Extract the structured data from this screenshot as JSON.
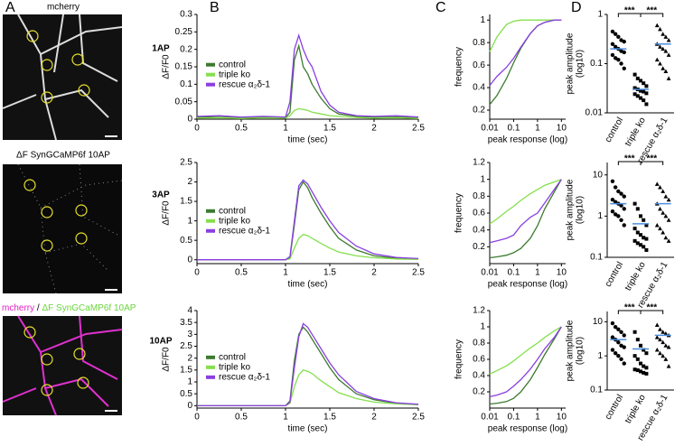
{
  "panel_labels": [
    "A",
    "B",
    "C",
    "D"
  ],
  "images": [
    {
      "label_parts": [
        "mcherry"
      ]
    },
    {
      "label_parts": [
        "ΔF SynGCaMP6f 10AP"
      ]
    },
    {
      "label_parts": [
        "mcherry",
        "/",
        "ΔF SynGCaMP6f 10AP"
      ]
    }
  ],
  "chart_data": [
    {
      "type": "line",
      "title": "1AP",
      "xlabel": "time (sec)",
      "ylabel": "ΔF/F0",
      "x": [
        0,
        0.25,
        0.5,
        0.75,
        1.0,
        1.05,
        1.1,
        1.15,
        1.2,
        1.25,
        1.3,
        1.4,
        1.5,
        1.6,
        1.8,
        2.0,
        2.25,
        2.5
      ],
      "xlim": [
        0,
        2.5
      ],
      "xticks": [
        0,
        0.5,
        1,
        1.5,
        2,
        2.5
      ],
      "ylim": [
        0,
        0.3
      ],
      "yticks": [
        0,
        0.05,
        0.1,
        0.15,
        0.2,
        0.25,
        0.3
      ],
      "series": [
        {
          "name": "control",
          "color": "#3c7a2e",
          "values": [
            0.005,
            0.008,
            0.005,
            0.006,
            0.004,
            0.02,
            0.17,
            0.21,
            0.15,
            0.13,
            0.1,
            0.06,
            0.03,
            0.015,
            0.008,
            0.005,
            0.006,
            0.004
          ]
        },
        {
          "name": "triple ko",
          "color": "#84e04c",
          "values": [
            0.003,
            0.004,
            0.002,
            0.004,
            0.003,
            0.01,
            0.025,
            0.03,
            0.028,
            0.025,
            0.02,
            0.015,
            0.01,
            0.008,
            0.005,
            0.003,
            0.004,
            0.002
          ]
        },
        {
          "name": "rescue α₂δ-1",
          "color": "#8a3fe0",
          "values": [
            0.008,
            0.01,
            0.006,
            0.008,
            0.006,
            0.05,
            0.2,
            0.24,
            0.2,
            0.17,
            0.15,
            0.08,
            0.04,
            0.02,
            0.01,
            0.008,
            0.01,
            0.006
          ]
        }
      ]
    },
    {
      "type": "line",
      "xlog": true,
      "xlabel": "peak response (log)",
      "ylabel": "frequency",
      "x": [
        0.01,
        0.02,
        0.05,
        0.1,
        0.2,
        0.5,
        1,
        2,
        5,
        10
      ],
      "xlim": [
        0.01,
        15
      ],
      "xticks": [
        0.01,
        0.1,
        1,
        10
      ],
      "ylim": [
        0.12,
        1.05
      ],
      "yticks": [
        0.2,
        0.4,
        0.6,
        0.8,
        1
      ],
      "series": [
        {
          "color": "#3c7a2e",
          "values": [
            0.25,
            0.33,
            0.48,
            0.62,
            0.75,
            0.88,
            0.95,
            0.98,
            1,
            1
          ]
        },
        {
          "color": "#84e04c",
          "values": [
            0.72,
            0.85,
            0.96,
            0.99,
            1,
            1,
            1,
            1,
            1,
            1
          ]
        },
        {
          "color": "#8a3fe0",
          "values": [
            0.42,
            0.5,
            0.58,
            0.66,
            0.76,
            0.88,
            0.95,
            0.98,
            1,
            1
          ]
        }
      ]
    },
    {
      "type": "strip",
      "ylog": true,
      "ylabel": [
        "peak amplitude",
        "(log10)"
      ],
      "categories": [
        "control",
        "triple ko",
        "rescue α₂δ-1"
      ],
      "ylim": [
        0.01,
        1
      ],
      "yticks": [
        0.01,
        0.1,
        1
      ],
      "mean_color": "#4a8fe0",
      "annotations": [
        {
          "text": "***"
        },
        {
          "text": "***"
        }
      ],
      "groups": [
        {
          "marker": "circle",
          "mean": 0.2,
          "values": [
            0.45,
            0.4,
            0.35,
            0.3,
            0.28,
            0.25,
            0.22,
            0.2,
            0.18,
            0.17,
            0.15,
            0.13,
            0.12,
            0.1,
            0.08
          ]
        },
        {
          "marker": "square",
          "mean": 0.03,
          "values": [
            0.06,
            0.05,
            0.045,
            0.04,
            0.035,
            0.032,
            0.03,
            0.028,
            0.027,
            0.025,
            0.024,
            0.022,
            0.02,
            0.018,
            0.015
          ]
        },
        {
          "marker": "triangle",
          "mean": 0.25,
          "values": [
            0.6,
            0.5,
            0.4,
            0.35,
            0.3,
            0.25,
            0.22,
            0.2,
            0.18,
            0.15,
            0.12,
            0.1,
            0.08,
            0.07,
            0.05
          ]
        }
      ]
    },
    {
      "type": "line",
      "title": "3AP",
      "xlabel": "time (sec)",
      "ylabel": "ΔF/F0",
      "x": [
        0,
        0.25,
        0.5,
        0.75,
        1.0,
        1.05,
        1.1,
        1.15,
        1.2,
        1.25,
        1.3,
        1.4,
        1.5,
        1.6,
        1.8,
        2.0,
        2.25,
        2.5
      ],
      "xlim": [
        0,
        2.5
      ],
      "xticks": [
        0,
        0.5,
        1,
        1.5,
        2,
        2.5
      ],
      "ylim": [
        -0.1,
        2.5
      ],
      "yticks": [
        0,
        0.5,
        1,
        1.5,
        2,
        2.5
      ],
      "series": [
        {
          "name": "control",
          "color": "#3c7a2e",
          "values": [
            0,
            0,
            0,
            0,
            0,
            0.05,
            0.9,
            1.8,
            2.0,
            1.85,
            1.6,
            1.2,
            0.85,
            0.55,
            0.25,
            0.1,
            0.04,
            0.02
          ]
        },
        {
          "name": "triple ko",
          "color": "#84e04c",
          "values": [
            0,
            0,
            0,
            0,
            0,
            0.02,
            0.3,
            0.55,
            0.65,
            0.62,
            0.55,
            0.42,
            0.3,
            0.2,
            0.1,
            0.05,
            0.02,
            0.01
          ]
        },
        {
          "name": "rescue α₂δ-1",
          "color": "#8a3fe0",
          "values": [
            0,
            0,
            0,
            0,
            0,
            0.08,
            1.0,
            1.9,
            2.05,
            1.95,
            1.75,
            1.35,
            1.0,
            0.7,
            0.35,
            0.15,
            0.06,
            0.03
          ]
        }
      ]
    },
    {
      "type": "line",
      "xlog": true,
      "xlabel": "peak response (log)",
      "ylabel": "frequency",
      "x": [
        0.01,
        0.02,
        0.05,
        0.1,
        0.2,
        0.5,
        1,
        2,
        5,
        10
      ],
      "xlim": [
        0.01,
        15
      ],
      "xticks": [
        0.01,
        0.1,
        1,
        10
      ],
      "ylim": [
        0,
        1.2
      ],
      "yticks": [
        0.2,
        0.4,
        0.6,
        0.8,
        1,
        1.2
      ],
      "series": [
        {
          "color": "#3c7a2e",
          "values": [
            0.07,
            0.08,
            0.1,
            0.13,
            0.18,
            0.3,
            0.45,
            0.65,
            0.85,
            1
          ]
        },
        {
          "color": "#84e04c",
          "values": [
            0.47,
            0.53,
            0.62,
            0.68,
            0.75,
            0.83,
            0.88,
            0.93,
            0.97,
            1
          ]
        },
        {
          "color": "#8a3fe0",
          "values": [
            0.25,
            0.27,
            0.3,
            0.34,
            0.45,
            0.55,
            0.6,
            0.72,
            0.88,
            1
          ]
        }
      ]
    },
    {
      "type": "strip",
      "ylog": true,
      "ylabel": [
        "peak amplitude",
        "(log10)"
      ],
      "categories": [
        "control",
        "triple ko",
        "rescue α₂δ-1"
      ],
      "ylim": [
        0.1,
        20
      ],
      "yticks": [
        0.1,
        1,
        10
      ],
      "mean_color": "#4a8fe0",
      "annotations": [
        {
          "text": "***"
        },
        {
          "text": "***"
        }
      ],
      "groups": [
        {
          "marker": "circle",
          "mean": 2,
          "values": [
            7,
            5,
            4,
            3.5,
            3,
            2.5,
            2.2,
            2,
            1.8,
            1.5,
            1.3,
            1.1,
            1,
            0.8,
            0.6
          ]
        },
        {
          "marker": "square",
          "mean": 0.65,
          "values": [
            2,
            1.5,
            1,
            0.8,
            0.6,
            0.5,
            0.4,
            0.35,
            0.3,
            0.28,
            0.25,
            0.22,
            0.2,
            0.18,
            0.15
          ]
        },
        {
          "marker": "triangle",
          "mean": 2,
          "values": [
            6,
            5,
            4,
            3,
            2.5,
            2,
            1.5,
            1.2,
            1,
            0.8,
            0.6,
            0.5,
            0.4,
            0.3,
            0.25
          ]
        }
      ]
    },
    {
      "type": "line",
      "title": "10AP",
      "xlabel": "time (sec)",
      "ylabel": "ΔF/F0",
      "x": [
        0,
        0.25,
        0.5,
        0.75,
        1.0,
        1.05,
        1.1,
        1.15,
        1.2,
        1.25,
        1.3,
        1.4,
        1.5,
        1.6,
        1.8,
        2.0,
        2.25,
        2.5
      ],
      "xlim": [
        0,
        2.5
      ],
      "xticks": [
        0,
        0.5,
        1,
        1.5,
        2,
        2.5
      ],
      "ylim": [
        -0.1,
        4
      ],
      "yticks": [
        0,
        0.5,
        1,
        1.5,
        2,
        2.5,
        3,
        3.5,
        4
      ],
      "series": [
        {
          "name": "control",
          "color": "#3c7a2e",
          "values": [
            0,
            0,
            0,
            0,
            0,
            0.2,
            1.9,
            3.0,
            3.3,
            3.1,
            2.8,
            2.2,
            1.6,
            1.1,
            0.5,
            0.25,
            0.1,
            0.05
          ]
        },
        {
          "name": "triple ko",
          "color": "#84e04c",
          "values": [
            0,
            0,
            0,
            0,
            0,
            0.1,
            0.8,
            1.3,
            1.5,
            1.45,
            1.35,
            1.05,
            0.8,
            0.55,
            0.3,
            0.15,
            0.08,
            0.04
          ]
        },
        {
          "name": "rescue α₂δ-1",
          "color": "#8a3fe0",
          "values": [
            0,
            0,
            0,
            0,
            0,
            0.15,
            1.6,
            2.9,
            3.45,
            3.3,
            3.0,
            2.4,
            1.8,
            1.3,
            0.6,
            0.3,
            0.12,
            0.06
          ]
        }
      ]
    },
    {
      "type": "line",
      "xlog": true,
      "xlabel": "peak response (log)",
      "ylabel": "frequency",
      "x": [
        0.01,
        0.02,
        0.05,
        0.1,
        0.2,
        0.5,
        1,
        2,
        5,
        10
      ],
      "xlim": [
        0.01,
        15
      ],
      "xticks": [
        0.01,
        0.1,
        1,
        10
      ],
      "ylim": [
        0,
        1.2
      ],
      "yticks": [
        0.2,
        0.4,
        0.6,
        0.8,
        1,
        1.2
      ],
      "series": [
        {
          "color": "#3c7a2e",
          "values": [
            0.05,
            0.06,
            0.08,
            0.12,
            0.2,
            0.35,
            0.5,
            0.66,
            0.85,
            1
          ]
        },
        {
          "color": "#84e04c",
          "values": [
            0.42,
            0.46,
            0.52,
            0.58,
            0.65,
            0.74,
            0.8,
            0.87,
            0.95,
            1
          ]
        },
        {
          "color": "#8a3fe0",
          "values": [
            0.14,
            0.16,
            0.2,
            0.27,
            0.35,
            0.48,
            0.6,
            0.73,
            0.87,
            1
          ]
        }
      ]
    },
    {
      "type": "strip",
      "ylog": true,
      "ylabel": [
        "peak amplitude",
        "(log10)"
      ],
      "categories": [
        "control",
        "triple ko",
        "rescue α₂δ-1"
      ],
      "ylim": [
        0.1,
        20
      ],
      "yticks": [
        0.1,
        1,
        10
      ],
      "mean_color": "#4a8fe0",
      "annotations": [
        {
          "text": "***"
        },
        {
          "text": "***"
        }
      ],
      "groups": [
        {
          "marker": "circle",
          "mean": 3,
          "values": [
            9,
            7,
            6,
            5,
            4,
            3.5,
            3,
            2.5,
            2,
            1.8,
            1.5,
            1.2,
            1,
            0.8,
            0.6
          ]
        },
        {
          "marker": "square",
          "mean": 1.6,
          "values": [
            5,
            3,
            2,
            1.5,
            1.2,
            1,
            0.8,
            0.6,
            0.5,
            0.45,
            0.4,
            0.38,
            0.35,
            0.32,
            0.3
          ]
        },
        {
          "marker": "triangle",
          "mean": 4,
          "values": [
            8,
            6,
            5,
            4.5,
            4,
            3.5,
            3,
            2.5,
            2,
            1.8,
            1.5,
            1.2,
            1,
            0.8,
            0.5
          ]
        }
      ]
    }
  ]
}
